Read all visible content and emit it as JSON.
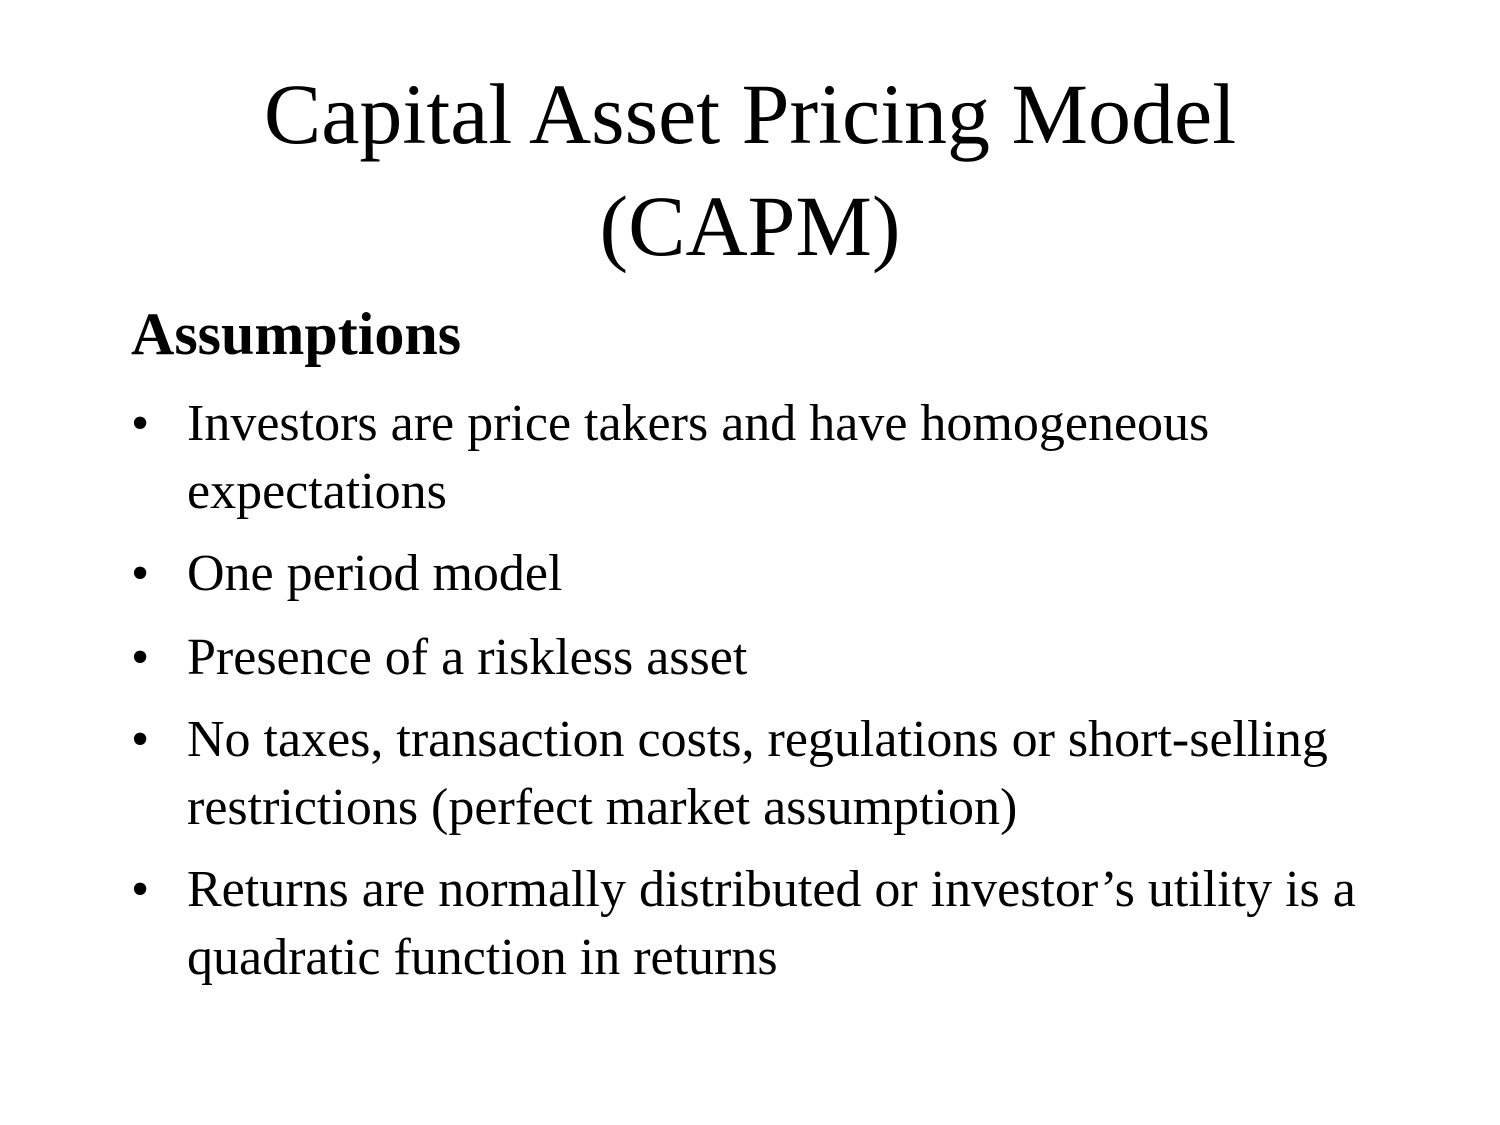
{
  "slide": {
    "title_line1": "Capital Asset Pricing Model",
    "title_line2": "(CAPM)",
    "subheading": "Assumptions",
    "bullet_symbol": "•",
    "bullets": [
      "Investors are price takers and have homogeneous expectations",
      "One period model",
      "Presence of a riskless asset",
      "No taxes, transaction costs, regulations or short-selling restrictions (perfect market assumption)",
      "Returns are normally distributed or investor’s utility is a quadratic function in returns"
    ]
  }
}
